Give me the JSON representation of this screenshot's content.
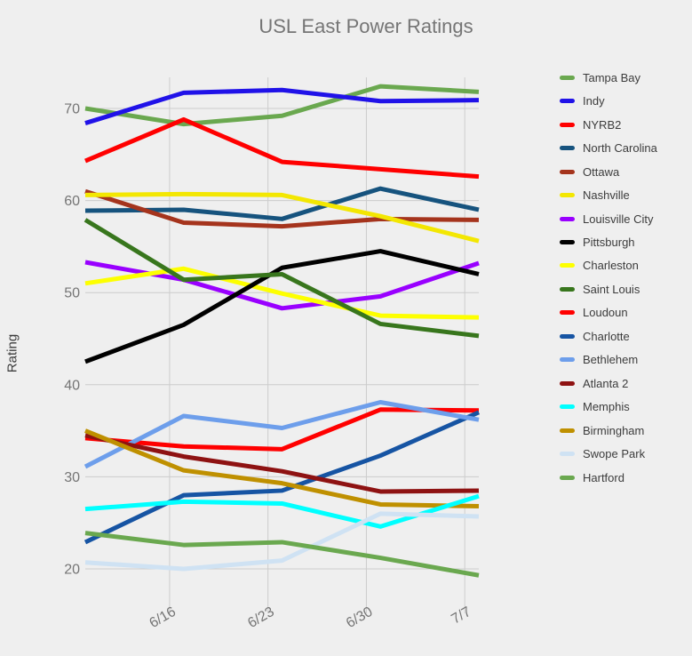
{
  "chart_data": {
    "type": "line",
    "title": "USL East Power Ratings",
    "xlabel": "",
    "ylabel": "Rating",
    "x_tick_labels": [
      "6/16",
      "6/23",
      "6/30",
      "7/7"
    ],
    "y_ticks": [
      20,
      30,
      40,
      50,
      60,
      70
    ],
    "ylim": [
      15,
      73.5
    ],
    "points_per_series": 5,
    "grid": true,
    "legend_position": "right",
    "background_color": "#efefef",
    "gridline_color": "#cccccc",
    "series": [
      {
        "name": "Tampa Bay",
        "color": "#6aa84f",
        "values": [
          70.0,
          68.3,
          69.2,
          72.4,
          71.8
        ]
      },
      {
        "name": "Indy",
        "color": "#2012e8",
        "values": [
          68.4,
          71.7,
          72.0,
          70.8,
          70.9
        ]
      },
      {
        "name": "NYRB2",
        "color": "#ff0000",
        "values": [
          64.3,
          68.8,
          64.2,
          63.4,
          62.6
        ]
      },
      {
        "name": "North Carolina",
        "color": "#16537e",
        "values": [
          58.9,
          59.0,
          58.0,
          61.3,
          59.0
        ]
      },
      {
        "name": "Ottawa",
        "color": "#a5341d",
        "values": [
          61.0,
          57.6,
          57.2,
          58.0,
          57.9
        ]
      },
      {
        "name": "Nashville",
        "color": "#f3e702",
        "values": [
          60.6,
          60.7,
          60.6,
          58.3,
          55.6
        ]
      },
      {
        "name": "Louisville City",
        "color": "#9900ff",
        "values": [
          53.3,
          51.4,
          48.3,
          49.6,
          53.2
        ]
      },
      {
        "name": "Pittsburgh",
        "color": "#000000",
        "values": [
          42.5,
          46.5,
          52.7,
          54.5,
          52.0
        ]
      },
      {
        "name": "Charleston",
        "color": "#fdff00",
        "values": [
          51.0,
          52.6,
          49.9,
          47.5,
          47.3
        ]
      },
      {
        "name": "Saint Louis",
        "color": "#38761d",
        "values": [
          57.9,
          51.4,
          52.0,
          46.6,
          45.3
        ]
      },
      {
        "name": "Loudoun",
        "color": "#ff0000",
        "values": [
          34.2,
          33.3,
          33.0,
          37.3,
          37.2
        ]
      },
      {
        "name": "Charlotte",
        "color": "#1654a3",
        "values": [
          22.9,
          28.0,
          28.5,
          32.3,
          37.0
        ]
      },
      {
        "name": "Bethlehem",
        "color": "#6d9eeb",
        "values": [
          31.1,
          36.6,
          35.3,
          38.1,
          36.2
        ]
      },
      {
        "name": "Atlanta 2",
        "color": "#8e1212",
        "values": [
          34.5,
          32.2,
          30.6,
          28.4,
          28.5
        ]
      },
      {
        "name": "Memphis",
        "color": "#00ffff",
        "values": [
          26.5,
          27.3,
          27.1,
          24.6,
          27.9
        ]
      },
      {
        "name": "Birmingham",
        "color": "#bf9000",
        "values": [
          35.0,
          30.7,
          29.3,
          27.0,
          26.8
        ]
      },
      {
        "name": "Swope Park",
        "color": "#cfe2f3",
        "values": [
          20.7,
          20.0,
          20.9,
          26.0,
          25.7
        ]
      },
      {
        "name": "Hartford",
        "color": "#6aa84f",
        "values": [
          23.9,
          22.6,
          22.9,
          21.2,
          19.3
        ]
      }
    ]
  }
}
